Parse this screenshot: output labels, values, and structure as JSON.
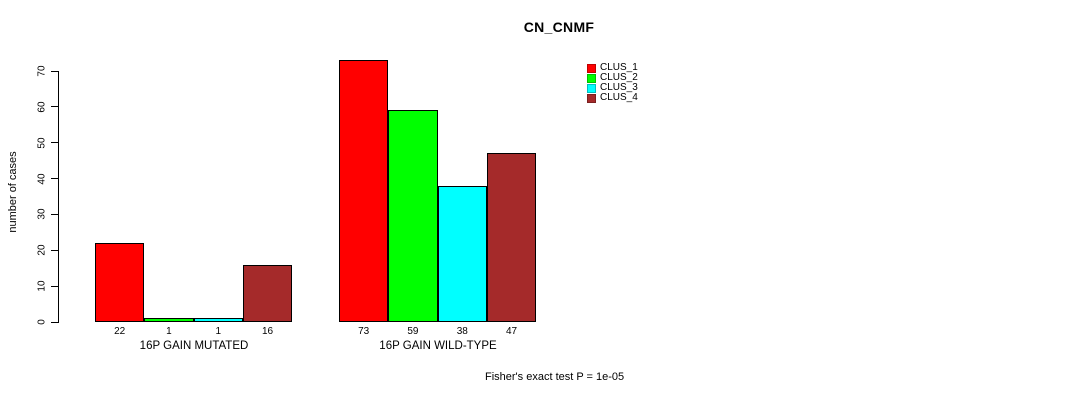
{
  "chart_data": {
    "type": "bar",
    "title": "CN_CNMF",
    "ylabel": "number of cases",
    "ylim": [
      0,
      70
    ],
    "yticks": [
      0,
      10,
      20,
      30,
      40,
      50,
      60,
      70
    ],
    "categories": [
      "16P GAIN MUTATED",
      "16P GAIN WILD-TYPE"
    ],
    "series": [
      {
        "name": "CLUS_1",
        "color": "#FF0000",
        "values": [
          22,
          73
        ]
      },
      {
        "name": "CLUS_2",
        "color": "#00FF00",
        "values": [
          1,
          59
        ]
      },
      {
        "name": "CLUS_3",
        "color": "#00FFFF",
        "values": [
          1,
          38
        ]
      },
      {
        "name": "CLUS_4",
        "color": "#A52A2A",
        "values": [
          16,
          47
        ]
      }
    ],
    "bar_value_labels": [
      [
        "22",
        "1",
        "1",
        "16"
      ],
      [
        "73",
        "59",
        "38",
        "47"
      ]
    ],
    "legend_entries": [
      "CLUS_1",
      "CLUS_2",
      "CLUS_3",
      "CLUS_4"
    ],
    "legend_position": "top-right",
    "grid": false,
    "annotation": "Fisher's exact test P = 1e-05"
  }
}
